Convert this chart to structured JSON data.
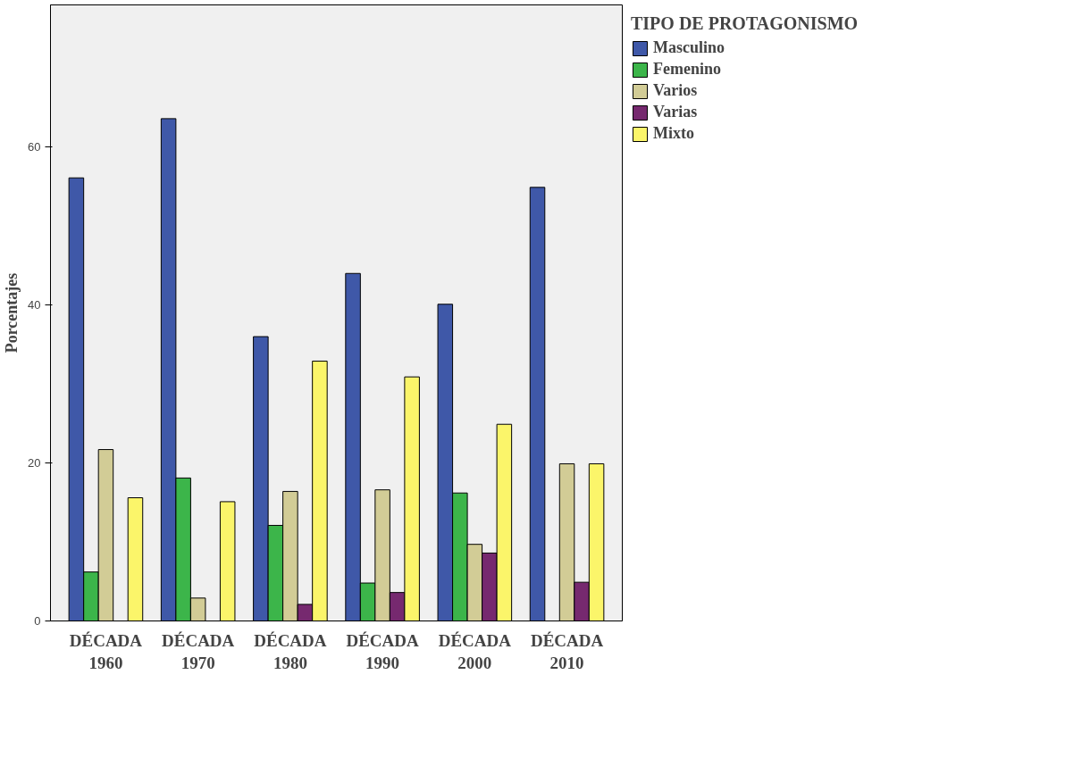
{
  "chart_data": {
    "type": "bar",
    "ylabel": "Porcentajes",
    "legend_title": "TIPO DE PROTAGONISMO",
    "categories": [
      "DÉCADA 1960",
      "DÉCADA 1970",
      "DÉCADA 1980",
      "DÉCADA 1990",
      "DÉCADA 2000",
      "DÉCADA 2010"
    ],
    "series": [
      {
        "name": "Masculino",
        "color": "#3f58a8",
        "values": [
          56.1,
          63.6,
          36.0,
          44.0,
          40.1,
          54.9
        ]
      },
      {
        "name": "Femenino",
        "color": "#3cb54a",
        "values": [
          6.2,
          18.1,
          12.1,
          4.8,
          16.2,
          null
        ]
      },
      {
        "name": "Varios",
        "color": "#d2cc96",
        "values": [
          21.7,
          2.9,
          16.4,
          16.6,
          9.7,
          19.9
        ]
      },
      {
        "name": "Varias",
        "color": "#76296f",
        "values": [
          null,
          null,
          2.1,
          3.6,
          8.6,
          4.9
        ]
      },
      {
        "name": "Mixto",
        "color": "#fbf56a",
        "values": [
          15.6,
          15.1,
          32.9,
          30.9,
          24.9,
          19.9
        ]
      }
    ],
    "ylim": [
      0,
      78
    ],
    "yticks": [
      0,
      20,
      40,
      60
    ],
    "grid": false,
    "legend": "top right"
  }
}
